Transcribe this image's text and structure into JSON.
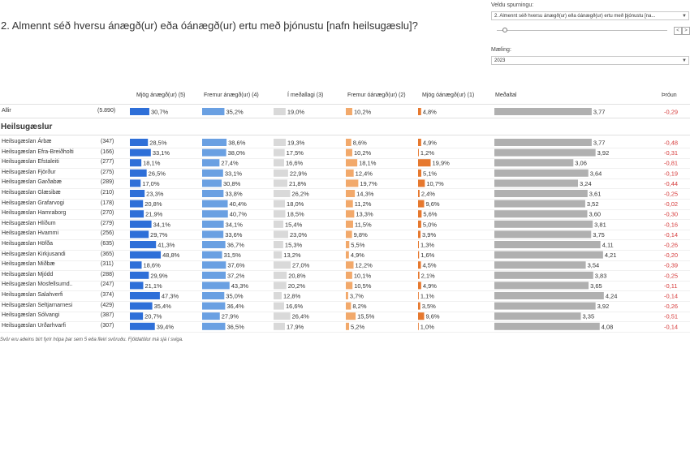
{
  "title": "2. Almennt séð hversu ánægð(ur) eða óánægð(ur) ertu með þjónustu [nafn heilsugæslu]?",
  "controls": {
    "question_label": "Veldu spurningu:",
    "question_value": "2. Almennt séð hversu ánægð(ur) eða óánægð(ur) ertu með þjónustu [na...",
    "measurement_label": "Mæling:",
    "measurement_value": "2023"
  },
  "headers": {
    "col1": "Mjög ánægð(ur) (5)",
    "col2": "Fremur ánægð(ur) (4)",
    "col3": "Í meðallagi (3)",
    "col4": "Fremur óánægð(ur) (2)",
    "col5": "Mjög óánægð(ur) (1)",
    "mean": "Meðaltal",
    "trend": "Þróun"
  },
  "section_title": "Heilsugæslur",
  "footnote": "Svör eru aðeins birt fyrir hópa þar sem 5 eða fleiri svöruðu. Fjöldatölur má sjá í sviga.",
  "colors": {
    "c5": "#2e6fd8",
    "c4": "#6aa0e2",
    "c3": "#d9d9d9",
    "c2": "#f2a96b",
    "c1": "#e6782e",
    "mean": "#b0b0b0",
    "trend": "#d63b3b"
  },
  "chart_data": {
    "type": "table",
    "title": "2. Almennt séð hversu ánægð(ur) eða óánægð(ur) ertu með þjónustu [nafn heilsugæslu]?",
    "series_names": [
      "Mjög ánægð(ur) (5)",
      "Fremur ánægð(ur) (4)",
      "Í meðallagi (3)",
      "Fremur óánægð(ur) (2)",
      "Mjög óánægð(ur) (1)"
    ],
    "mean_range": [
      0,
      5
    ],
    "total": {
      "name": "Allir",
      "n": "(5.890)",
      "pct": [
        "30,7%",
        "35,2%",
        "19,0%",
        "10,2%",
        "4,8%"
      ],
      "mean": "3,77",
      "trend": "-0,29"
    },
    "rows": [
      {
        "name": "Heilsugæslan Árbæ",
        "n": "(347)",
        "pct": [
          "28,5%",
          "38,6%",
          "19,3%",
          "8,6%",
          "4,9%"
        ],
        "mean": "3,77",
        "trend": "-0,48"
      },
      {
        "name": "Heilsugæslan Efra-Breiðholti",
        "n": "(166)",
        "pct": [
          "33,1%",
          "38,0%",
          "17,5%",
          "10,2%",
          "1,2%"
        ],
        "mean": "3,92",
        "trend": "-0,31"
      },
      {
        "name": "Heilsugæslan Efstaleiti",
        "n": "(277)",
        "pct": [
          "18,1%",
          "27,4%",
          "16,6%",
          "18,1%",
          "19,9%"
        ],
        "mean": "3,06",
        "trend": "-0,81"
      },
      {
        "name": "Heilsugæslan Fjörður",
        "n": "(275)",
        "pct": [
          "26,5%",
          "33,1%",
          "22,9%",
          "12,4%",
          "5,1%"
        ],
        "mean": "3,64",
        "trend": "-0,19"
      },
      {
        "name": "Heilsugæslan Garðabæ",
        "n": "(289)",
        "pct": [
          "17,0%",
          "30,8%",
          "21,8%",
          "19,7%",
          "10,7%"
        ],
        "mean": "3,24",
        "trend": "-0,44"
      },
      {
        "name": "Heilsugæslan Glæsibæ",
        "n": "(210)",
        "pct": [
          "23,3%",
          "33,8%",
          "26,2%",
          "14,3%",
          "2,4%"
        ],
        "mean": "3,61",
        "trend": "-0,25"
      },
      {
        "name": "Heilsugæslan Grafarvogi",
        "n": "(178)",
        "pct": [
          "20,8%",
          "40,4%",
          "18,0%",
          "11,2%",
          "9,6%"
        ],
        "mean": "3,52",
        "trend": "-0,02"
      },
      {
        "name": "Heilsugæslan Hamraborg",
        "n": "(270)",
        "pct": [
          "21,9%",
          "40,7%",
          "18,5%",
          "13,3%",
          "5,6%"
        ],
        "mean": "3,60",
        "trend": "-0,30"
      },
      {
        "name": "Heilsugæslan Hlíðum",
        "n": "(279)",
        "pct": [
          "34,1%",
          "34,1%",
          "15,4%",
          "11,5%",
          "5,0%"
        ],
        "mean": "3,81",
        "trend": "-0,16"
      },
      {
        "name": "Heilsugæslan Hvammi",
        "n": "(256)",
        "pct": [
          "29,7%",
          "33,6%",
          "23,0%",
          "9,8%",
          "3,9%"
        ],
        "mean": "3,75",
        "trend": "-0,14"
      },
      {
        "name": "Heilsugæslan Höfða",
        "n": "(635)",
        "pct": [
          "41,3%",
          "36,7%",
          "15,3%",
          "5,5%",
          "1,3%"
        ],
        "mean": "4,11",
        "trend": "-0,26"
      },
      {
        "name": "Heilsugæslan Kirkjusandi",
        "n": "(365)",
        "pct": [
          "48,8%",
          "31,5%",
          "13,2%",
          "4,9%",
          "1,6%"
        ],
        "mean": "4,21",
        "trend": "-0,20"
      },
      {
        "name": "Heilsugæslan Miðbæ",
        "n": "(311)",
        "pct": [
          "18,6%",
          "37,6%",
          "27,0%",
          "12,2%",
          "4,5%"
        ],
        "mean": "3,54",
        "trend": "-0,39"
      },
      {
        "name": "Heilsugæslan Mjódd",
        "n": "(288)",
        "pct": [
          "29,9%",
          "37,2%",
          "20,8%",
          "10,1%",
          "2,1%"
        ],
        "mean": "3,83",
        "trend": "-0,25"
      },
      {
        "name": "Heilsugæslan Mosfellsumd..",
        "n": "(247)",
        "pct": [
          "21,1%",
          "43,3%",
          "20,2%",
          "10,5%",
          "4,9%"
        ],
        "mean": "3,65",
        "trend": "-0,11"
      },
      {
        "name": "Heilsugæslan Salahverfi",
        "n": "(374)",
        "pct": [
          "47,3%",
          "35,0%",
          "12,8%",
          "3,7%",
          "1,1%"
        ],
        "mean": "4,24",
        "trend": "-0,14"
      },
      {
        "name": "Heilsugæslan Seltjarnarnesi",
        "n": "(429)",
        "pct": [
          "35,4%",
          "36,4%",
          "16,6%",
          "8,2%",
          "3,5%"
        ],
        "mean": "3,92",
        "trend": "-0,26"
      },
      {
        "name": "Heilsugæslan Sólvangi",
        "n": "(387)",
        "pct": [
          "20,7%",
          "27,9%",
          "26,4%",
          "15,5%",
          "9,6%"
        ],
        "mean": "3,35",
        "trend": "-0,51"
      },
      {
        "name": "Heilsugæslan Urðarhvarfi",
        "n": "(307)",
        "pct": [
          "39,4%",
          "36,5%",
          "17,9%",
          "5,2%",
          "1,0%"
        ],
        "mean": "4,08",
        "trend": "-0,14"
      }
    ]
  }
}
